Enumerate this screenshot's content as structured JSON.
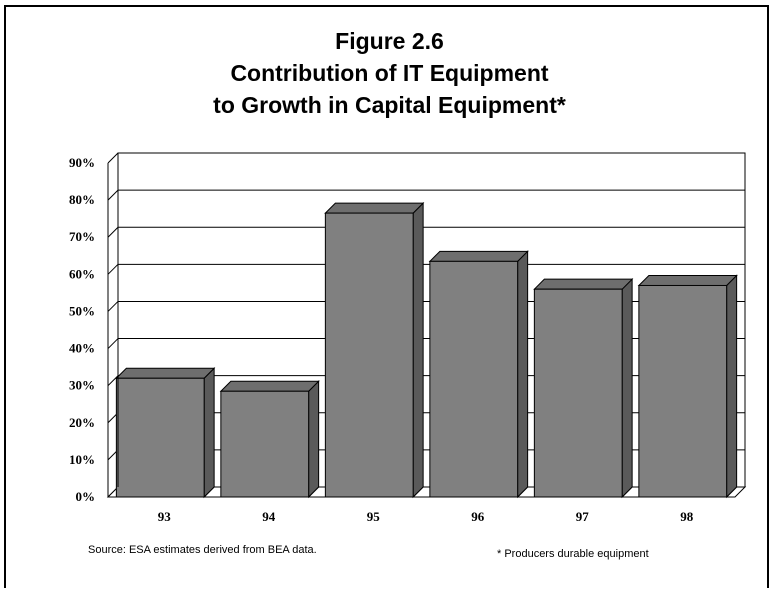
{
  "chart_data": {
    "type": "bar",
    "title_lines": [
      "Figure 2.6",
      "Contribution of IT Equipment",
      "to Growth in Capital Equipment*"
    ],
    "categories": [
      "93",
      "94",
      "95",
      "96",
      "97",
      "98"
    ],
    "values": [
      32,
      28.5,
      76.5,
      63.5,
      56,
      57
    ],
    "ylim": [
      0,
      90
    ],
    "y_ticks": [
      "0%",
      "10%",
      "20%",
      "30%",
      "40%",
      "50%",
      "60%",
      "70%",
      "80%",
      "90%"
    ],
    "grid": true,
    "bar_color": "#808080",
    "bar_top_color": "#6e6e6e",
    "bar_side_color": "#5a5a5a"
  },
  "footer": {
    "source": "Source: ESA estimates derived from BEA data.",
    "note": "* Producers durable equipment"
  }
}
